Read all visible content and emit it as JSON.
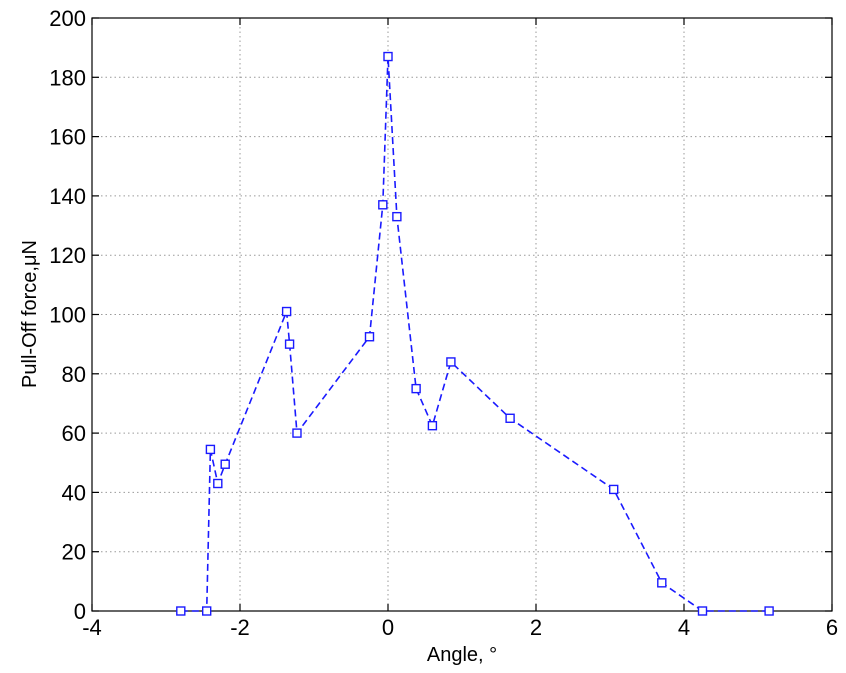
{
  "chart_data": {
    "type": "line",
    "title": "",
    "xlabel": "Angle, °",
    "ylabel": "Pull-Off force,μN",
    "xlim": [
      -4,
      6
    ],
    "ylim": [
      0,
      200
    ],
    "xticks": [
      -4,
      -2,
      0,
      2,
      4,
      6
    ],
    "yticks": [
      0,
      20,
      40,
      60,
      80,
      100,
      120,
      140,
      160,
      180,
      200
    ],
    "grid": true,
    "series": [
      {
        "color": "#1a1aff",
        "marker": "square",
        "line_style": "dashed",
        "points": [
          {
            "x": -2.8,
            "y": 0
          },
          {
            "x": -2.45,
            "y": 0
          },
          {
            "x": -2.4,
            "y": 54.5
          },
          {
            "x": -2.3,
            "y": 43
          },
          {
            "x": -2.2,
            "y": 49.5
          },
          {
            "x": -1.37,
            "y": 101
          },
          {
            "x": -1.33,
            "y": 90
          },
          {
            "x": -1.23,
            "y": 60
          },
          {
            "x": -0.25,
            "y": 92.5
          },
          {
            "x": -0.07,
            "y": 137
          },
          {
            "x": 0.0,
            "y": 187
          },
          {
            "x": 0.12,
            "y": 133
          },
          {
            "x": 0.38,
            "y": 75
          },
          {
            "x": 0.6,
            "y": 62.5
          },
          {
            "x": 0.85,
            "y": 84
          },
          {
            "x": 1.65,
            "y": 65
          },
          {
            "x": 3.05,
            "y": 41
          },
          {
            "x": 3.7,
            "y": 9.5
          },
          {
            "x": 4.25,
            "y": 0
          },
          {
            "x": 5.15,
            "y": 0
          }
        ]
      }
    ]
  }
}
